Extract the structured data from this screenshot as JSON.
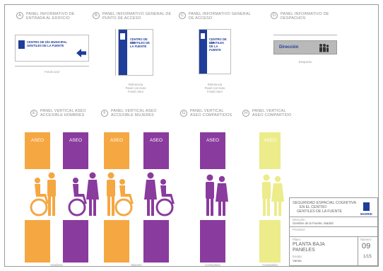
{
  "panels_top": [
    {
      "letter": "A",
      "title": "PANEL INFORMATIVO DE ENTRADA AL EDIFICIO",
      "sign_line1": "CENTRO DE DÍA MUNICIPAL",
      "sign_line2": "GENTILES DE LA FUENTE",
      "note": "Fondo azul"
    },
    {
      "letter": "B",
      "title": "PANEL INFORMATIVO GENERAL DE PUNTO DE ACCESO",
      "sign_lines": [
        "CENTRO DE DÍA",
        "GENTILES DE",
        "LA FUENTE"
      ],
      "note_lines": [
        "Referencia",
        "Panel con texto",
        "Fondo claro"
      ]
    },
    {
      "letter": "C",
      "title": "PANEL INFORMATIVO GENERAL DE ACCESO",
      "sign_lines": [
        "CENTRO DE DÍA",
        "GENTILES",
        "DE LA FUENTE"
      ],
      "note_lines": [
        "Referencia",
        "Panel con texto",
        "Fondo claro"
      ]
    },
    {
      "letter": "D",
      "title": "PANEL INFORMATIVO DE DESPACHOS",
      "sign_label": "Dirección",
      "note": "Despacho"
    }
  ],
  "panels_bottom": [
    {
      "letter": "E",
      "title_line1": "PANEL VERTICAL ASEO",
      "title_line2": "ACCESIBLE HOMBRES",
      "header": "ASEO",
      "color": "#f5a742",
      "note": "Hombres"
    },
    {
      "letter": "F",
      "title_line1": "PANEL VERTICAL ASEO",
      "title_line2": "ACCESIBLE MUJERES",
      "header": "ASEO",
      "color": "#8a3b9e",
      "note": "Mujeres"
    },
    {
      "letter": "G",
      "title_line1": "PANEL VERTICAL",
      "title_line2": "ASEO COMPARTIDOS",
      "header": "ASEO",
      "color": "#8a3b9e",
      "note": "Compartido"
    },
    {
      "letter": "H",
      "title_line1": "PANEL VERTICAL",
      "title_line2": "ASEO COMPARTIDO",
      "header": "ASEO",
      "color": "#ecec8a",
      "note": "Compartido"
    }
  ],
  "title_block": {
    "project_line1": "SEGURIDAD ESPACIAL COGNITIVA",
    "project_line2": "EN EL CENTRO",
    "project_line3": "GENTILES DE LA FUENTE",
    "field_label": "Dirección:",
    "field_value": "Gentiles de la Fuente, Madrid",
    "client_label": "Promotor:",
    "plan_label": "Plano:",
    "plan_line1": "PLANTA BAJA",
    "plan_line2": "PANELES",
    "scale_label": "Escala:",
    "scale_value": "Varias",
    "sheet_label": "Número:",
    "sheet_number": "09",
    "sheet_sub": "1/15",
    "logo_text": "MADRID"
  },
  "colors": {
    "orange": "#f5a742",
    "purple": "#8a3b9e",
    "yellow": "#ecec8a",
    "blue": "#1f3d9a"
  }
}
